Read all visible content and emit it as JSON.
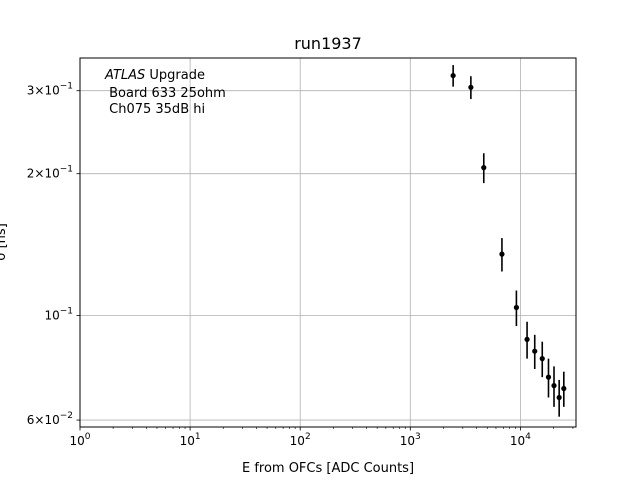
{
  "chart_data": {
    "type": "scatter",
    "title": "run1937",
    "xlabel": "E from OFCs [ADC Counts]",
    "ylabel": "σ [ns]",
    "xscale": "log",
    "yscale": "log",
    "xlim": [
      1,
      32000
    ],
    "ylim": [
      0.058,
      0.352
    ],
    "grid": true,
    "x_ticks": [
      {
        "base": "10",
        "exp": "0",
        "value": 1
      },
      {
        "base": "10",
        "exp": "1",
        "value": 10
      },
      {
        "base": "10",
        "exp": "2",
        "value": 100
      },
      {
        "base": "10",
        "exp": "3",
        "value": 1000
      },
      {
        "base": "10",
        "exp": "4",
        "value": 10000
      }
    ],
    "y_ticks": [
      {
        "mant": "3×10",
        "exp": "−1",
        "value": 0.3
      },
      {
        "mant": "2×10",
        "exp": "−1",
        "value": 0.2
      },
      {
        "mant": "10",
        "exp": "−1",
        "value": 0.1
      },
      {
        "mant": "6×10",
        "exp": "−2",
        "value": 0.06
      }
    ],
    "annotation": {
      "italic": "ATLAS",
      "line1_rest": " Upgrade",
      "line2": " Board 633 25ohm",
      "line3": " Ch075 35dB hi"
    },
    "points": [
      {
        "x": 2450,
        "y": 0.323,
        "yerr": 0.017
      },
      {
        "x": 3550,
        "y": 0.305,
        "yerr": 0.017
      },
      {
        "x": 4650,
        "y": 0.206,
        "yerr": 0.015
      },
      {
        "x": 6800,
        "y": 0.135,
        "yerr": 0.011
      },
      {
        "x": 9200,
        "y": 0.104,
        "yerr": 0.009
      },
      {
        "x": 11500,
        "y": 0.089,
        "yerr": 0.008
      },
      {
        "x": 13500,
        "y": 0.084,
        "yerr": 0.007
      },
      {
        "x": 15800,
        "y": 0.081,
        "yerr": 0.007
      },
      {
        "x": 18000,
        "y": 0.074,
        "yerr": 0.007
      },
      {
        "x": 20200,
        "y": 0.071,
        "yerr": 0.007
      },
      {
        "x": 22500,
        "y": 0.067,
        "yerr": 0.006
      },
      {
        "x": 24800,
        "y": 0.07,
        "yerr": 0.006
      }
    ]
  }
}
